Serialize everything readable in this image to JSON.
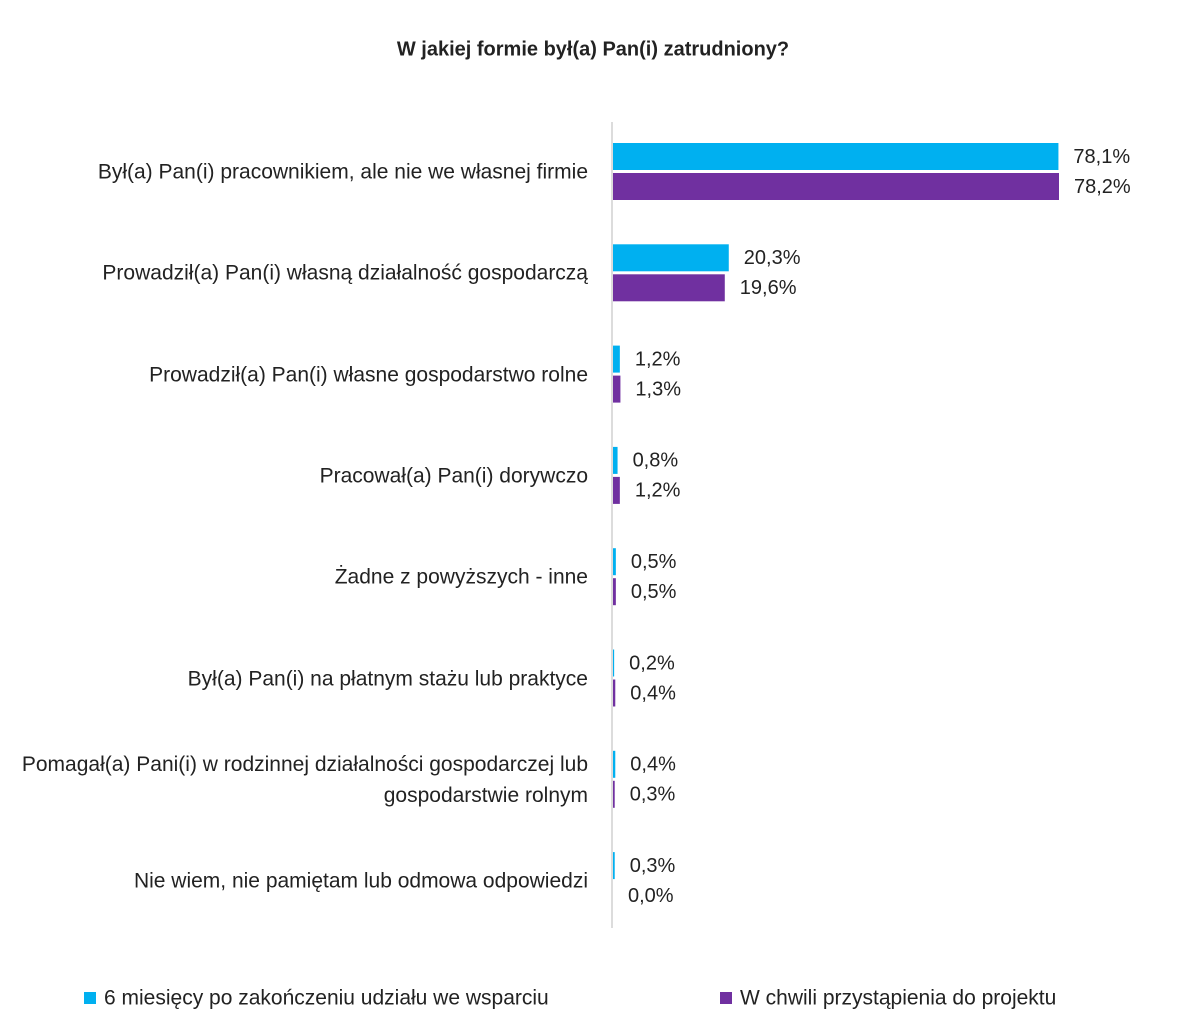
{
  "chart_data": {
    "type": "bar",
    "orientation": "horizontal",
    "title": "W jakiej formie był(a) Pan(i) zatrudniony?",
    "categories": [
      "Był(a) Pan(i) pracownikiem, ale nie we własnej firmie",
      "Prowadził(a) Pan(i) własną działalność gospodarczą",
      "Prowadził(a) Pan(i) własne gospodarstwo rolne",
      "Pracował(a) Pan(i) dorywczo",
      "Żadne z powyższych - inne",
      "Był(a) Pan(i) na płatnym stażu lub praktyce",
      "Pomagał(a) Pani(i) w rodzinnej działalności gospodarczej lub gospodarstwie rolnym",
      "Nie wiem, nie pamiętam lub odmowa odpowiedzi"
    ],
    "series": [
      {
        "name": "6 miesięcy po zakończeniu udziału we wsparciu",
        "color": "#00b0f0",
        "values": [
          78.1,
          20.3,
          1.2,
          0.8,
          0.5,
          0.2,
          0.4,
          0.3
        ],
        "value_labels": [
          "78,1%",
          "20,3%",
          "1,2%",
          "0,8%",
          "0,5%",
          "0,2%",
          "0,4%",
          "0,3%"
        ]
      },
      {
        "name": "W chwili przystąpienia do projektu",
        "color": "#7030a0",
        "values": [
          78.2,
          19.6,
          1.3,
          1.2,
          0.5,
          0.4,
          0.3,
          0.0
        ],
        "value_labels": [
          "78,2%",
          "19,6%",
          "1,3%",
          "1,2%",
          "0,5%",
          "0,4%",
          "0,3%",
          "0,0%"
        ]
      }
    ],
    "legend": "bottom"
  }
}
